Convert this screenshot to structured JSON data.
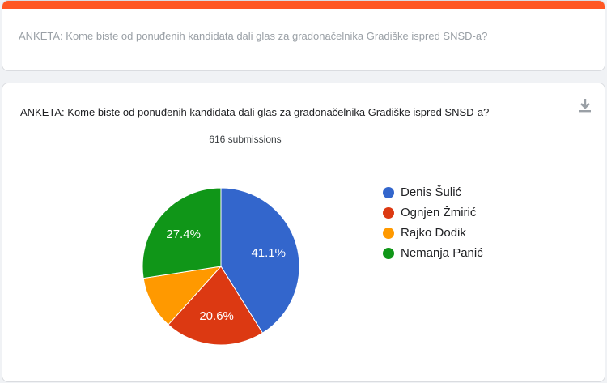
{
  "header": {
    "accent_color": "#ff5722",
    "question": "ANKETA: Kome biste od ponuđenih kandidata dali glas za gradonačelnika Gradiške ispred SNSD-a?"
  },
  "card": {
    "title": "ANKETA: Kome biste od ponuđenih kandidata dali glas za gradonačelnika Gradiške ispred SNSD-a?",
    "submissions_label": "616 submissions",
    "download_icon": "download-icon"
  },
  "chart_data": {
    "type": "pie",
    "title": "ANKETA: Kome biste od ponuđenih kandidata dali glas za gradonačelnika Gradiške ispred SNSD-a?",
    "total_submissions": 616,
    "legend_position": "right",
    "slices": [
      {
        "name": "Denis Šulić",
        "value": 41.1,
        "color": "#3366cc",
        "label": "41.1%"
      },
      {
        "name": "Ognjen Žmirić",
        "value": 20.6,
        "color": "#dc3912",
        "label": "20.6%"
      },
      {
        "name": "Rajko Dodik",
        "value": 10.9,
        "color": "#ff9900",
        "label": ""
      },
      {
        "name": "Nemanja Panić",
        "value": 27.4,
        "color": "#109618",
        "label": "27.4%"
      }
    ]
  }
}
